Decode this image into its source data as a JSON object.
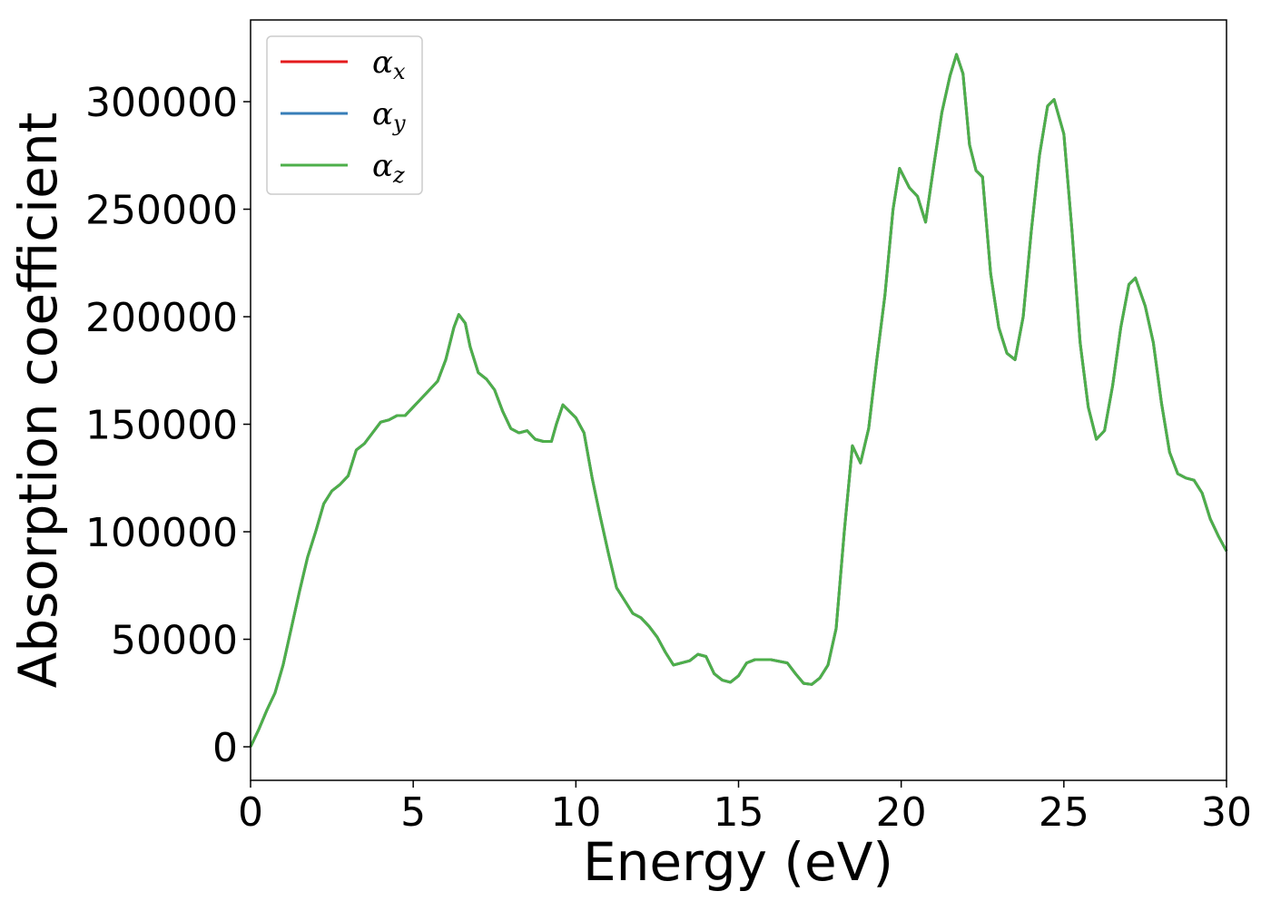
{
  "chart_data": {
    "type": "line",
    "xlabel": "Energy (eV)",
    "ylabel": "Absorption coefficient",
    "xlim": [
      0,
      30
    ],
    "ylim": [
      -15600,
      338000
    ],
    "xticks": [
      0,
      5,
      10,
      15,
      20,
      25,
      30
    ],
    "yticks": [
      0,
      50000,
      100000,
      150000,
      200000,
      250000,
      300000
    ],
    "legend": "upper left",
    "x": [
      0,
      0.25,
      0.5,
      0.75,
      1.0,
      1.25,
      1.5,
      1.75,
      2.0,
      2.25,
      2.5,
      2.75,
      3.0,
      3.25,
      3.5,
      3.75,
      4.0,
      4.25,
      4.5,
      4.75,
      5.0,
      5.25,
      5.5,
      5.75,
      6.0,
      6.25,
      6.4,
      6.6,
      6.75,
      7.0,
      7.25,
      7.5,
      7.75,
      8.0,
      8.25,
      8.5,
      8.75,
      9.0,
      9.25,
      9.4,
      9.6,
      9.8,
      10.0,
      10.25,
      10.5,
      10.75,
      11.0,
      11.25,
      11.5,
      11.75,
      12.0,
      12.25,
      12.5,
      12.75,
      13.0,
      13.25,
      13.5,
      13.75,
      14.0,
      14.25,
      14.5,
      14.75,
      15.0,
      15.25,
      15.5,
      16.0,
      16.5,
      16.75,
      17.0,
      17.25,
      17.5,
      17.75,
      18.0,
      18.25,
      18.5,
      18.75,
      19.0,
      19.25,
      19.5,
      19.75,
      19.95,
      20.25,
      20.5,
      20.75,
      21.0,
      21.25,
      21.5,
      21.7,
      21.9,
      22.1,
      22.3,
      22.5,
      22.75,
      23.0,
      23.25,
      23.5,
      23.75,
      24.0,
      24.25,
      24.5,
      24.7,
      25.0,
      25.25,
      25.5,
      25.75,
      26.0,
      26.25,
      26.5,
      26.75,
      27.0,
      27.2,
      27.5,
      27.75,
      28.0,
      28.25,
      28.5,
      28.75,
      29.0,
      29.25,
      29.5,
      29.75,
      30.0
    ],
    "series": [
      {
        "name": "αx",
        "color": "#e41a1c",
        "values": [
          0,
          8000,
          17000,
          25000,
          38000,
          55000,
          72000,
          88000,
          100000,
          113000,
          119000,
          122000,
          126000,
          138000,
          141000,
          146000,
          151000,
          152000,
          154000,
          154000,
          158000,
          162000,
          166000,
          170000,
          180000,
          195000,
          201000,
          197000,
          186000,
          174000,
          171000,
          166000,
          156000,
          148000,
          146000,
          147000,
          143000,
          142000,
          142000,
          150000,
          159000,
          156000,
          153000,
          146000,
          125000,
          107000,
          90000,
          74000,
          68000,
          62000,
          60000,
          56000,
          51000,
          44000,
          38000,
          39000,
          40000,
          43000,
          42000,
          34000,
          31000,
          30000,
          33000,
          39000,
          40500,
          40500,
          39000,
          34000,
          29500,
          29000,
          32000,
          38000,
          55000,
          100000,
          140000,
          132000,
          148000,
          180000,
          210000,
          250000,
          269000,
          260000,
          256000,
          244000,
          270000,
          295000,
          312000,
          322000,
          313000,
          280000,
          268000,
          265000,
          220000,
          195000,
          183000,
          180000,
          200000,
          240000,
          275000,
          298000,
          301000,
          285000,
          240000,
          188000,
          158000,
          143000,
          147000,
          168000,
          195000,
          215000,
          218000,
          205000,
          188000,
          160000,
          137000,
          127000,
          125000,
          124000,
          118000,
          106000,
          98000,
          91000
        ]
      },
      {
        "name": "αy",
        "color": "#377eb8",
        "values": [
          0,
          8000,
          17000,
          25000,
          38000,
          55000,
          72000,
          88000,
          100000,
          113000,
          119000,
          122000,
          126000,
          138000,
          141000,
          146000,
          151000,
          152000,
          154000,
          154000,
          158000,
          162000,
          166000,
          170000,
          180000,
          195000,
          201000,
          197000,
          186000,
          174000,
          171000,
          166000,
          156000,
          148000,
          146000,
          147000,
          143000,
          142000,
          142000,
          150000,
          159000,
          156000,
          153000,
          146000,
          125000,
          107000,
          90000,
          74000,
          68000,
          62000,
          60000,
          56000,
          51000,
          44000,
          38000,
          39000,
          40000,
          43000,
          42000,
          34000,
          31000,
          30000,
          33000,
          39000,
          40500,
          40500,
          39000,
          34000,
          29500,
          29000,
          32000,
          38000,
          55000,
          100000,
          140000,
          132000,
          148000,
          180000,
          210000,
          250000,
          269000,
          260000,
          256000,
          244000,
          270000,
          295000,
          312000,
          322000,
          313000,
          280000,
          268000,
          265000,
          220000,
          195000,
          183000,
          180000,
          200000,
          240000,
          275000,
          298000,
          301000,
          285000,
          240000,
          188000,
          158000,
          143000,
          147000,
          168000,
          195000,
          215000,
          218000,
          205000,
          188000,
          160000,
          137000,
          127000,
          125000,
          124000,
          118000,
          106000,
          98000,
          91000
        ]
      },
      {
        "name": "αz",
        "color": "#4daf4a",
        "values": [
          0,
          8000,
          17000,
          25000,
          38000,
          55000,
          72000,
          88000,
          100000,
          113000,
          119000,
          122000,
          126000,
          138000,
          141000,
          146000,
          151000,
          152000,
          154000,
          154000,
          158000,
          162000,
          166000,
          170000,
          180000,
          195000,
          201000,
          197000,
          186000,
          174000,
          171000,
          166000,
          156000,
          148000,
          146000,
          147000,
          143000,
          142000,
          142000,
          150000,
          159000,
          156000,
          153000,
          146000,
          125000,
          107000,
          90000,
          74000,
          68000,
          62000,
          60000,
          56000,
          51000,
          44000,
          38000,
          39000,
          40000,
          43000,
          42000,
          34000,
          31000,
          30000,
          33000,
          39000,
          40500,
          40500,
          39000,
          34000,
          29500,
          29000,
          32000,
          38000,
          55000,
          100000,
          140000,
          132000,
          148000,
          180000,
          210000,
          250000,
          269000,
          260000,
          256000,
          244000,
          270000,
          295000,
          312000,
          322000,
          313000,
          280000,
          268000,
          265000,
          220000,
          195000,
          183000,
          180000,
          200000,
          240000,
          275000,
          298000,
          301000,
          285000,
          240000,
          188000,
          158000,
          143000,
          147000,
          168000,
          195000,
          215000,
          218000,
          205000,
          188000,
          160000,
          137000,
          127000,
          125000,
          124000,
          118000,
          106000,
          98000,
          91000
        ]
      }
    ]
  }
}
